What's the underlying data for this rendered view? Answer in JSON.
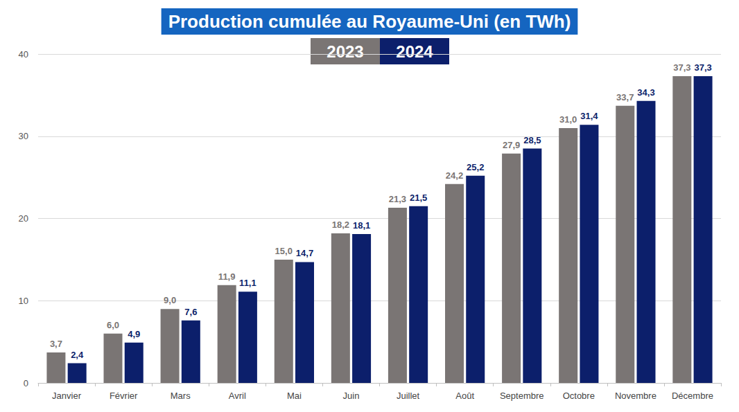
{
  "chart_data": {
    "type": "bar",
    "title": "Production cumulée au Royaume-Uni (en TWh)",
    "categories": [
      "Janvier",
      "Février",
      "Mars",
      "Avril",
      "Mai",
      "Juin",
      "Juillet",
      "Août",
      "Septembre",
      "Octobre",
      "Novembre",
      "Décembre"
    ],
    "series": [
      {
        "name": "2023",
        "color": "#7a7574",
        "values": [
          3.7,
          6.0,
          9.0,
          11.9,
          15.0,
          18.2,
          21.3,
          24.2,
          27.9,
          31.0,
          33.7,
          37.3
        ],
        "value_labels": [
          "3,7",
          "6,0",
          "9,0",
          "11,9",
          "15,0",
          "18,2",
          "21,3",
          "24,2",
          "27,9",
          "31,0",
          "33,7",
          "37,3"
        ]
      },
      {
        "name": "2024",
        "color": "#0c1f6b",
        "values": [
          2.4,
          4.9,
          7.6,
          11.1,
          14.7,
          18.1,
          21.5,
          25.2,
          28.5,
          31.4,
          34.3,
          37.3
        ],
        "value_labels": [
          "2,4",
          "4,9",
          "7,6",
          "11,1",
          "14,7",
          "18,1",
          "21,5",
          "25,2",
          "28,5",
          "31,4",
          "34,3",
          "37,3"
        ]
      }
    ],
    "ylim": [
      0,
      40
    ],
    "yticks": [
      0,
      10,
      20,
      30,
      40
    ],
    "grid": true,
    "data_labels": true,
    "legend": "top"
  }
}
